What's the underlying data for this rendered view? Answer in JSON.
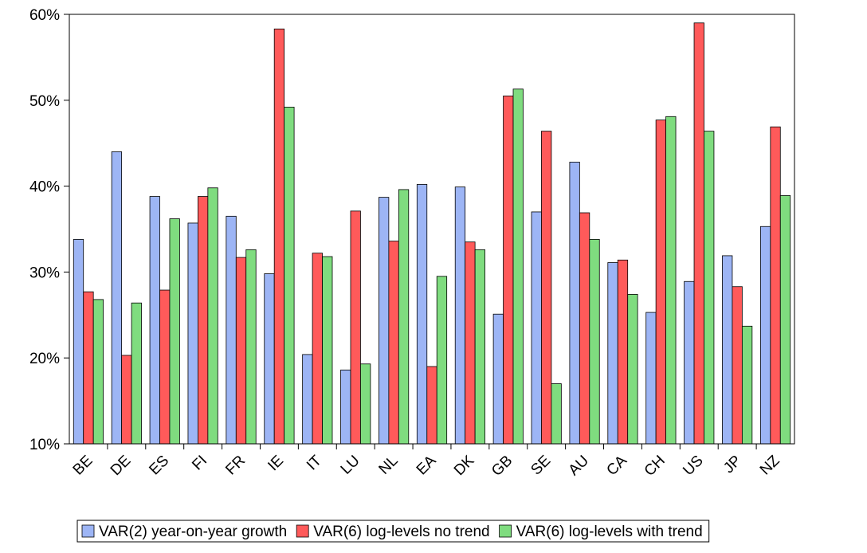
{
  "chart_data": {
    "type": "bar",
    "categories": [
      "BE",
      "DE",
      "ES",
      "FI",
      "FR",
      "IE",
      "IT",
      "LU",
      "NL",
      "EA",
      "DK",
      "GB",
      "SE",
      "AU",
      "CA",
      "CH",
      "US",
      "JP",
      "NZ"
    ],
    "series": [
      {
        "name": "VAR(2) year-on-year growth",
        "color": "#9db5f5",
        "values": [
          33.8,
          44.0,
          38.8,
          35.7,
          36.5,
          29.8,
          20.4,
          18.6,
          38.7,
          40.2,
          39.9,
          25.1,
          37.0,
          42.8,
          31.1,
          25.3,
          28.9,
          31.9,
          35.3
        ]
      },
      {
        "name": "VAR(6) log-levels no trend",
        "color": "#ff5a5a",
        "values": [
          27.7,
          20.3,
          27.9,
          38.8,
          31.7,
          58.3,
          32.2,
          37.1,
          33.6,
          19.0,
          33.5,
          50.5,
          46.4,
          36.9,
          31.4,
          47.7,
          59.0,
          28.3,
          46.9
        ]
      },
      {
        "name": "VAR(6) log-levels with trend",
        "color": "#7fdc7f",
        "values": [
          26.8,
          26.4,
          36.2,
          39.8,
          32.6,
          49.2,
          31.8,
          19.3,
          39.6,
          29.5,
          32.6,
          51.3,
          17.0,
          33.8,
          27.4,
          48.1,
          46.4,
          23.7,
          38.9
        ]
      }
    ],
    "ylim": [
      10,
      60
    ],
    "yticks": [
      {
        "value": 10,
        "label": "10%"
      },
      {
        "value": 20,
        "label": "20%"
      },
      {
        "value": 30,
        "label": "30%"
      },
      {
        "value": 40,
        "label": "40%"
      },
      {
        "value": 50,
        "label": "50%"
      },
      {
        "value": 60,
        "label": "60%"
      }
    ],
    "legend": "bottom"
  }
}
